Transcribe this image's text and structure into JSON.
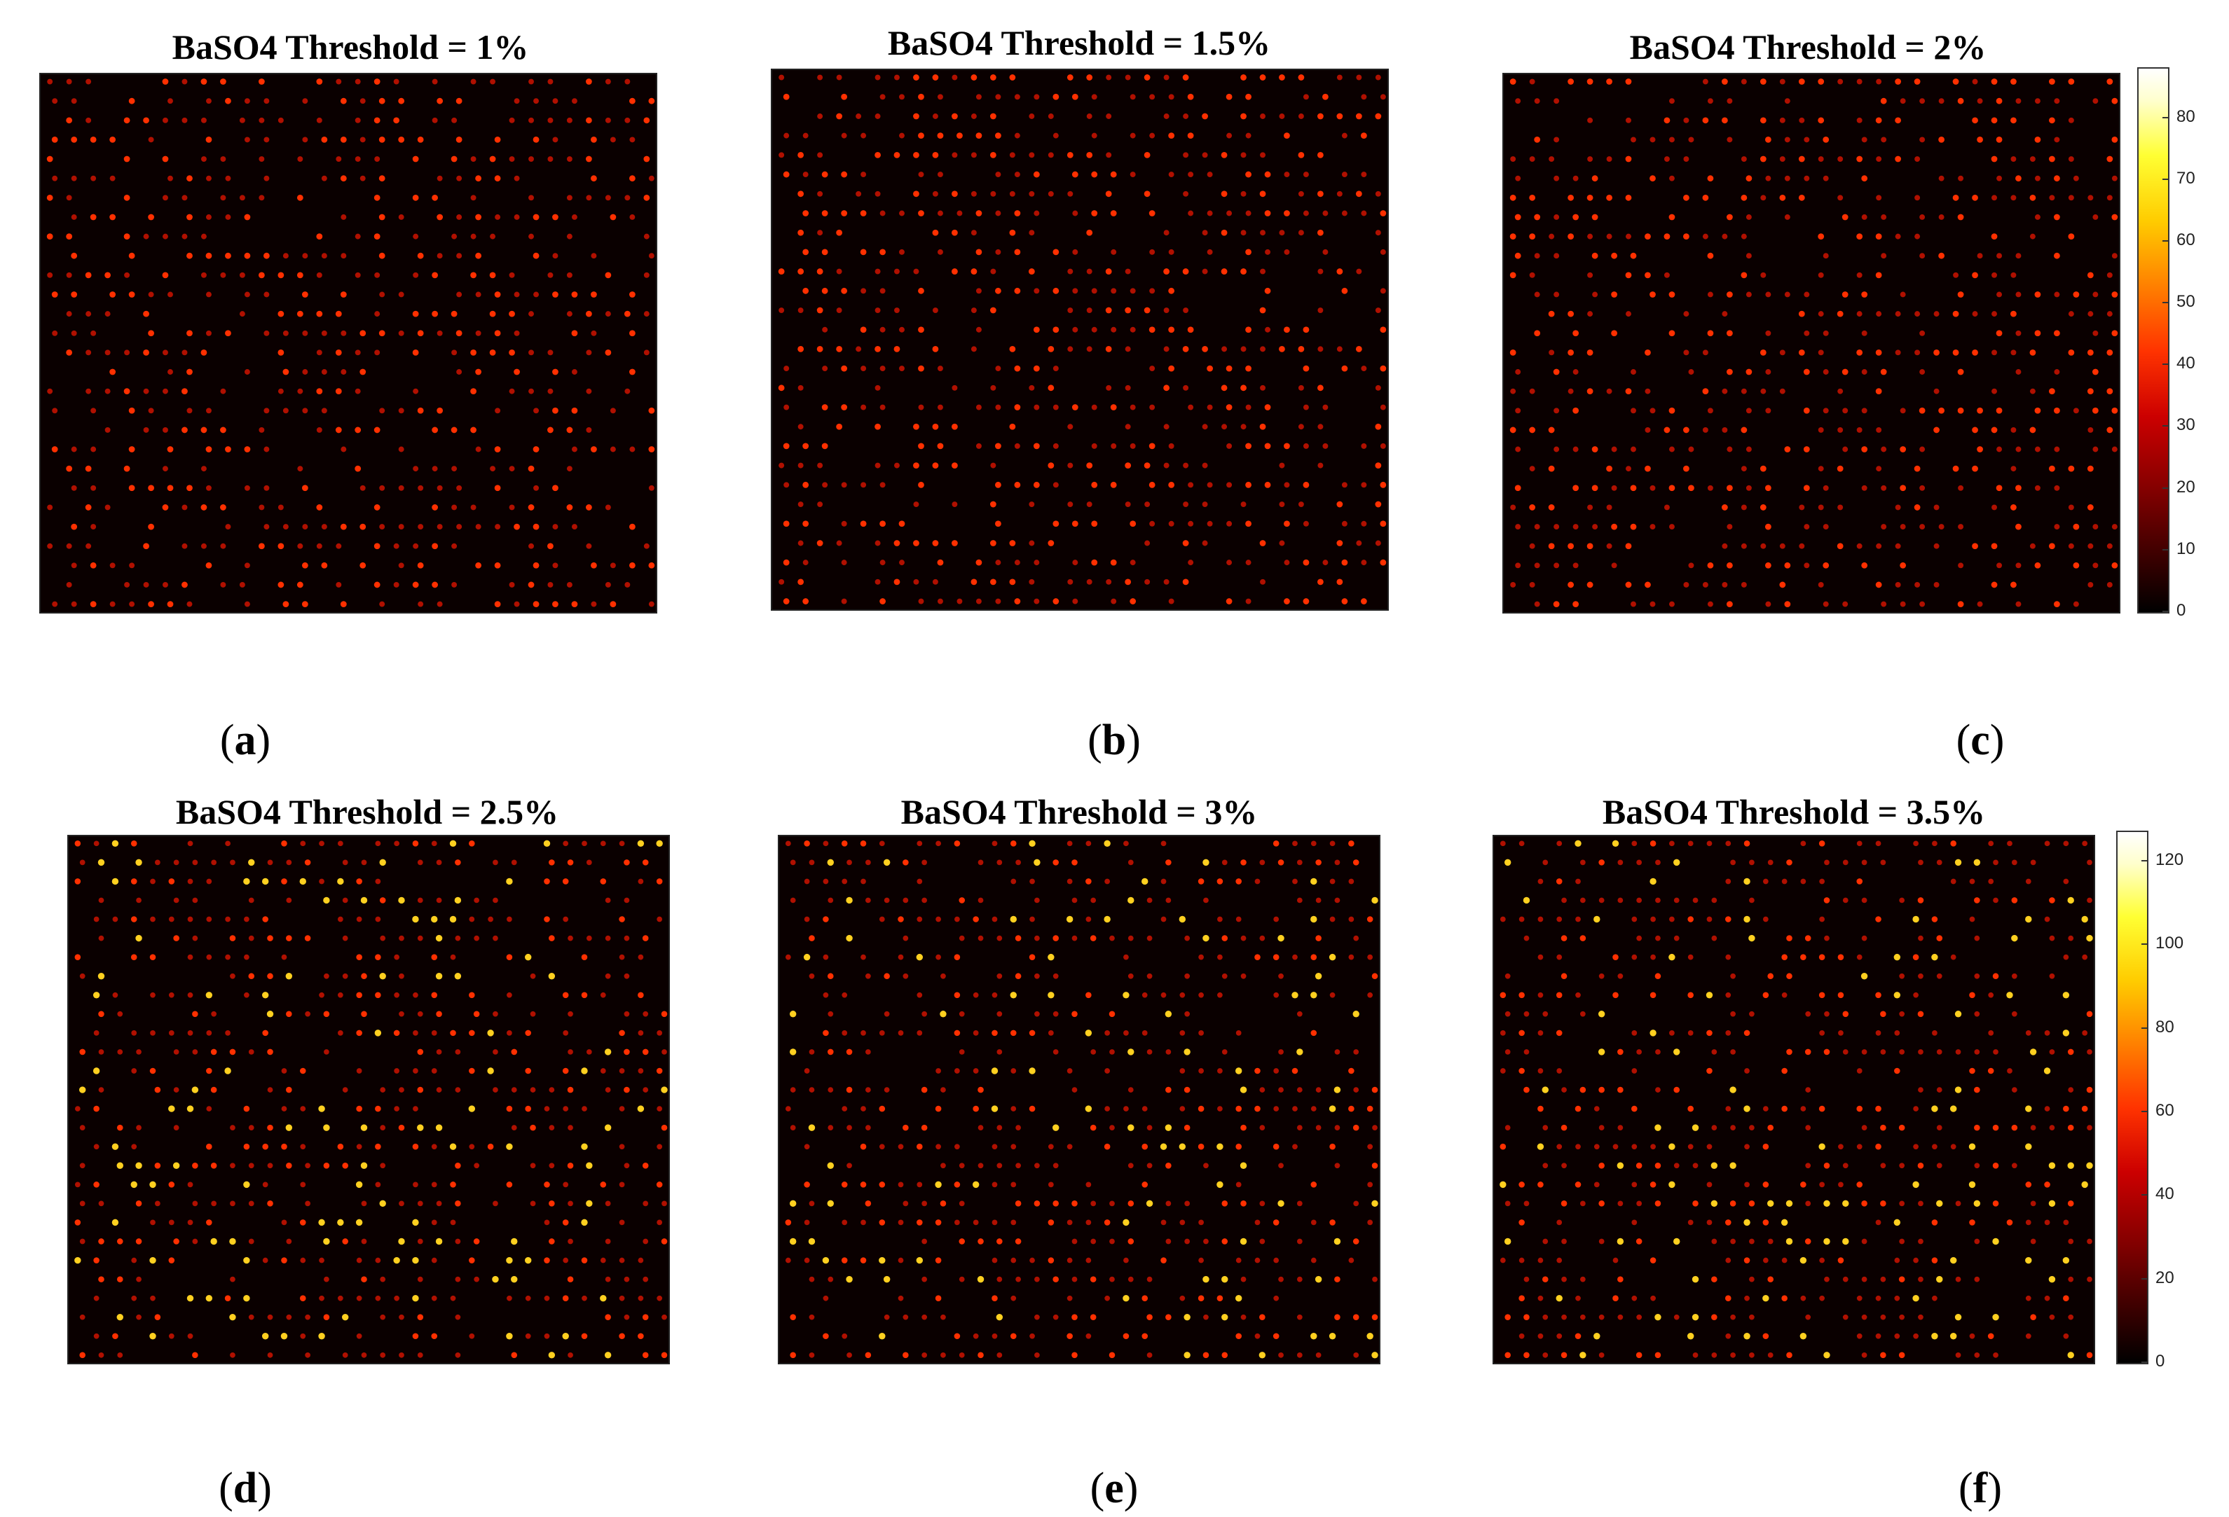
{
  "chart_data": [
    {
      "type": "heatmap",
      "title": "BaSO4 Threshold = 1%",
      "caption_letter": "a",
      "colorscale": "hot",
      "clim": [
        0,
        88
      ]
    },
    {
      "type": "heatmap",
      "title": "BaSO4 Threshold = 1.5%",
      "caption_letter": "b",
      "colorscale": "hot",
      "clim": [
        0,
        88
      ]
    },
    {
      "type": "heatmap",
      "title": "BaSO4 Threshold = 2%",
      "caption_letter": "c",
      "colorscale": "hot",
      "clim": [
        0,
        88
      ]
    },
    {
      "type": "heatmap",
      "title": "BaSO4 Threshold = 2.5%",
      "caption_letter": "d",
      "colorscale": "hot",
      "clim": [
        0,
        127
      ]
    },
    {
      "type": "heatmap",
      "title": "BaSO4 Threshold = 3%",
      "caption_letter": "e",
      "colorscale": "hot",
      "clim": [
        0,
        127
      ]
    },
    {
      "type": "heatmap",
      "title": "BaSO4 Threshold = 3.5%",
      "caption_letter": "f",
      "colorscale": "hot",
      "clim": [
        0,
        127
      ]
    }
  ],
  "colorbars": [
    {
      "ticks": [
        "0",
        "10",
        "20",
        "30",
        "40",
        "50",
        "60",
        "70",
        "80"
      ],
      "max": 88
    },
    {
      "ticks": [
        "0",
        "20",
        "40",
        "60",
        "80",
        "100",
        "120"
      ],
      "max": 127
    }
  ],
  "colors": {
    "background": "#0a0000",
    "spot_dim": "#b01000",
    "spot_mid": "#ff3000",
    "spot_bright": "#ffd020"
  }
}
